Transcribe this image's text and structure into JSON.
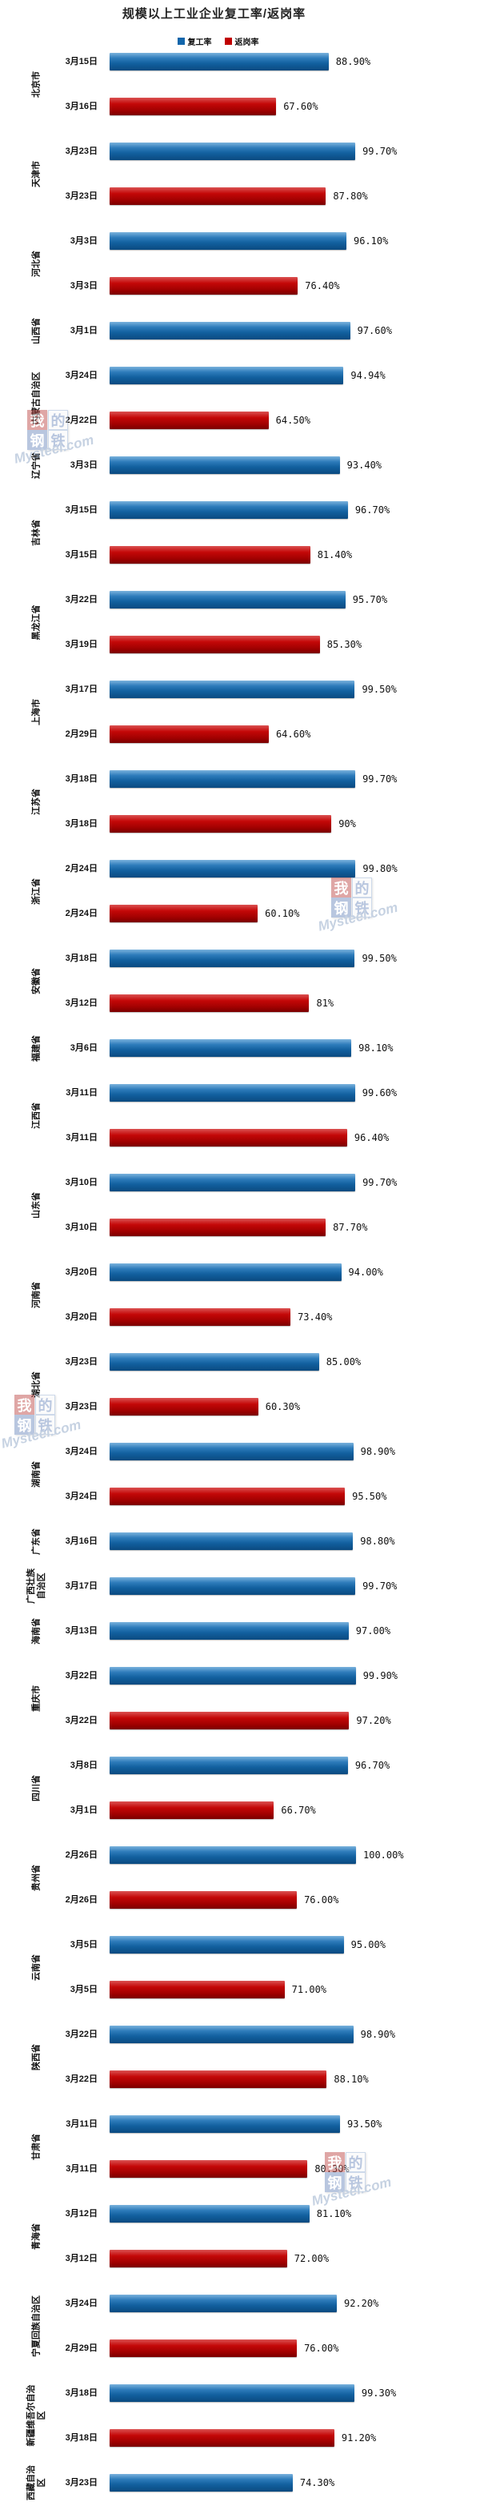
{
  "title": "规模以上工业企业复工率/返岗率",
  "watermark": {
    "text": "Mysteel.com",
    "logo_chars": [
      "我",
      "的",
      "钢",
      "铁"
    ]
  },
  "chart_data": {
    "type": "bar",
    "orientation": "horizontal",
    "title": "规模以上工业企业复工率/返岗率",
    "value_unit": "%",
    "xlim": [
      0,
      100
    ],
    "grid": false,
    "legend_position": "top",
    "series": [
      "复工率",
      "返岗率"
    ],
    "series_colors": {
      "复工率": "#1266ab",
      "返岗率": "#c00000"
    },
    "groups": [
      {
        "province": "北京市",
        "bars": [
          {
            "series": "复工率",
            "date": "3月15日",
            "value": 88.9,
            "label": "88.90%"
          },
          {
            "series": "返岗率",
            "date": "3月16日",
            "value": 67.6,
            "label": "67.60%"
          }
        ]
      },
      {
        "province": "天津市",
        "bars": [
          {
            "series": "复工率",
            "date": "3月23日",
            "value": 99.7,
            "label": "99.70%"
          },
          {
            "series": "返岗率",
            "date": "3月23日",
            "value": 87.8,
            "label": "87.80%"
          }
        ]
      },
      {
        "province": "河北省",
        "bars": [
          {
            "series": "复工率",
            "date": "3月3日",
            "value": 96.1,
            "label": "96.10%"
          },
          {
            "series": "返岗率",
            "date": "3月3日",
            "value": 76.4,
            "label": "76.40%"
          }
        ]
      },
      {
        "province": "山西省",
        "bars": [
          {
            "series": "复工率",
            "date": "3月1日",
            "value": 97.6,
            "label": "97.60%"
          }
        ]
      },
      {
        "province": "内蒙古自治区",
        "bars": [
          {
            "series": "复工率",
            "date": "3月24日",
            "value": 94.94,
            "label": "94.94%"
          },
          {
            "series": "返岗率",
            "date": "2月22日",
            "value": 64.5,
            "label": "64.50%"
          }
        ]
      },
      {
        "province": "辽宁省",
        "bars": [
          {
            "series": "复工率",
            "date": "3月3日",
            "value": 93.4,
            "label": "93.40%"
          }
        ]
      },
      {
        "province": "吉林省",
        "bars": [
          {
            "series": "复工率",
            "date": "3月15日",
            "value": 96.7,
            "label": "96.70%"
          },
          {
            "series": "返岗率",
            "date": "3月15日",
            "value": 81.4,
            "label": "81.40%"
          }
        ]
      },
      {
        "province": "黑龙江省",
        "bars": [
          {
            "series": "复工率",
            "date": "3月22日",
            "value": 95.7,
            "label": "95.70%"
          },
          {
            "series": "返岗率",
            "date": "3月19日",
            "value": 85.3,
            "label": "85.30%"
          }
        ]
      },
      {
        "province": "上海市",
        "bars": [
          {
            "series": "复工率",
            "date": "3月17日",
            "value": 99.5,
            "label": "99.50%"
          },
          {
            "series": "返岗率",
            "date": "2月29日",
            "value": 64.6,
            "label": "64.60%"
          }
        ]
      },
      {
        "province": "江苏省",
        "bars": [
          {
            "series": "复工率",
            "date": "3月18日",
            "value": 99.7,
            "label": "99.70%"
          },
          {
            "series": "返岗率",
            "date": "3月18日",
            "value": 90,
            "label": "90%"
          }
        ]
      },
      {
        "province": "浙江省",
        "bars": [
          {
            "series": "复工率",
            "date": "2月24日",
            "value": 99.8,
            "label": "99.80%"
          },
          {
            "series": "返岗率",
            "date": "2月24日",
            "value": 60.1,
            "label": "60.10%"
          }
        ]
      },
      {
        "province": "安徽省",
        "bars": [
          {
            "series": "复工率",
            "date": "3月18日",
            "value": 99.5,
            "label": "99.50%"
          },
          {
            "series": "返岗率",
            "date": "3月12日",
            "value": 81,
            "label": "81%"
          }
        ]
      },
      {
        "province": "福建省",
        "bars": [
          {
            "series": "复工率",
            "date": "3月6日",
            "value": 98.1,
            "label": "98.10%"
          }
        ]
      },
      {
        "province": "江西省",
        "bars": [
          {
            "series": "复工率",
            "date": "3月11日",
            "value": 99.6,
            "label": "99.60%"
          },
          {
            "series": "返岗率",
            "date": "3月11日",
            "value": 96.4,
            "label": "96.40%"
          }
        ]
      },
      {
        "province": "山东省",
        "bars": [
          {
            "series": "复工率",
            "date": "3月10日",
            "value": 99.7,
            "label": "99.70%"
          },
          {
            "series": "返岗率",
            "date": "3月10日",
            "value": 87.7,
            "label": "87.70%"
          }
        ]
      },
      {
        "province": "河南省",
        "bars": [
          {
            "series": "复工率",
            "date": "3月20日",
            "value": 94,
            "label": "94.00%"
          },
          {
            "series": "返岗率",
            "date": "3月20日",
            "value": 73.4,
            "label": "73.40%"
          }
        ]
      },
      {
        "province": "湖北省",
        "bars": [
          {
            "series": "复工率",
            "date": "3月23日",
            "value": 85,
            "label": "85.00%"
          },
          {
            "series": "返岗率",
            "date": "3月23日",
            "value": 60.3,
            "label": "60.30%"
          }
        ]
      },
      {
        "province": "湖南省",
        "bars": [
          {
            "series": "复工率",
            "date": "3月24日",
            "value": 98.9,
            "label": "98.90%"
          },
          {
            "series": "返岗率",
            "date": "3月24日",
            "value": 95.5,
            "label": "95.50%"
          }
        ]
      },
      {
        "province": "广东省",
        "bars": [
          {
            "series": "复工率",
            "date": "3月16日",
            "value": 98.8,
            "label": "98.80%"
          }
        ]
      },
      {
        "province": "广西壮族自治区",
        "bars": [
          {
            "series": "复工率",
            "date": "3月17日",
            "value": 99.7,
            "label": "99.70%"
          }
        ]
      },
      {
        "province": "海南省",
        "bars": [
          {
            "series": "复工率",
            "date": "3月13日",
            "value": 97,
            "label": "97.00%"
          }
        ]
      },
      {
        "province": "重庆市",
        "bars": [
          {
            "series": "复工率",
            "date": "3月22日",
            "value": 99.9,
            "label": "99.90%"
          },
          {
            "series": "返岗率",
            "date": "3月22日",
            "value": 97.2,
            "label": "97.20%"
          }
        ]
      },
      {
        "province": "四川省",
        "bars": [
          {
            "series": "复工率",
            "date": "3月8日",
            "value": 96.7,
            "label": "96.70%"
          },
          {
            "series": "返岗率",
            "date": "3月1日",
            "value": 66.7,
            "label": "66.70%"
          }
        ]
      },
      {
        "province": "贵州省",
        "bars": [
          {
            "series": "复工率",
            "date": "2月26日",
            "value": 100,
            "label": "100.00%"
          },
          {
            "series": "返岗率",
            "date": "2月26日",
            "value": 76,
            "label": "76.00%"
          }
        ]
      },
      {
        "province": "云南省",
        "bars": [
          {
            "series": "复工率",
            "date": "3月5日",
            "value": 95,
            "label": "95.00%"
          },
          {
            "series": "返岗率",
            "date": "3月5日",
            "value": 71,
            "label": "71.00%"
          }
        ]
      },
      {
        "province": "陕西省",
        "bars": [
          {
            "series": "复工率",
            "date": "3月22日",
            "value": 98.9,
            "label": "98.90%"
          },
          {
            "series": "返岗率",
            "date": "3月22日",
            "value": 88.1,
            "label": "88.10%"
          }
        ]
      },
      {
        "province": "甘肃省",
        "bars": [
          {
            "series": "复工率",
            "date": "3月11日",
            "value": 93.5,
            "label": "93.50%"
          },
          {
            "series": "返岗率",
            "date": "3月11日",
            "value": 80.3,
            "label": "80.30%"
          }
        ]
      },
      {
        "province": "青海省",
        "bars": [
          {
            "series": "复工率",
            "date": "3月12日",
            "value": 81.1,
            "label": "81.10%"
          },
          {
            "series": "返岗率",
            "date": "3月12日",
            "value": 72,
            "label": "72.00%"
          }
        ]
      },
      {
        "province": "宁夏回族自治区",
        "bars": [
          {
            "series": "复工率",
            "date": "3月24日",
            "value": 92.2,
            "label": "92.20%"
          },
          {
            "series": "返岗率",
            "date": "2月29日",
            "value": 76,
            "label": "76.00%"
          }
        ]
      },
      {
        "province": "新疆维吾尔自治区",
        "bars": [
          {
            "series": "复工率",
            "date": "3月18日",
            "value": 99.3,
            "label": "99.30%"
          },
          {
            "series": "返岗率",
            "date": "3月18日",
            "value": 91.2,
            "label": "91.20%"
          }
        ]
      },
      {
        "province": "西藏自治区",
        "bars": [
          {
            "series": "复工率",
            "date": "3月23日",
            "value": 74.3,
            "label": "74.30%"
          }
        ]
      }
    ]
  }
}
